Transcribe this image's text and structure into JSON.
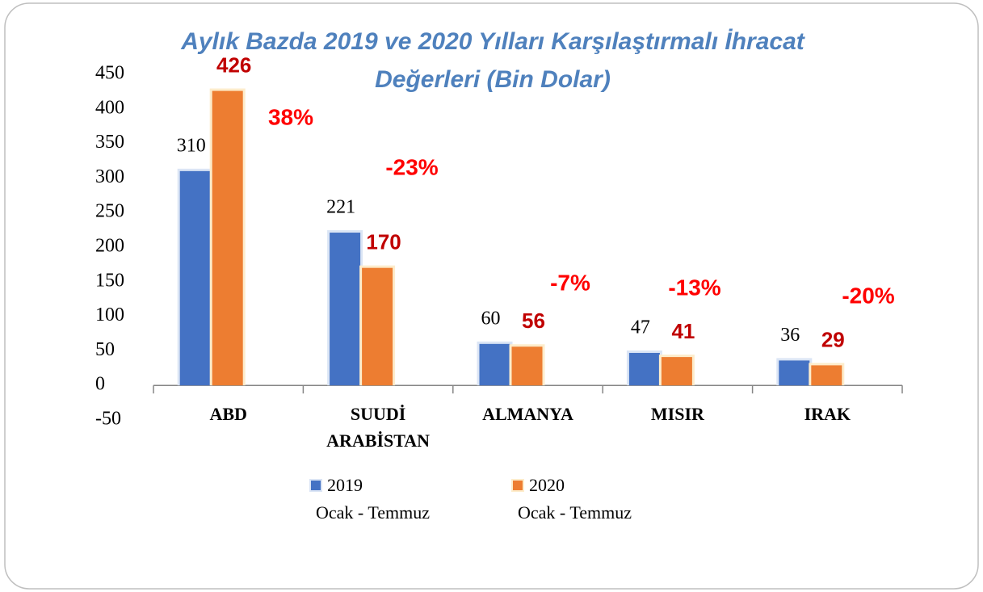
{
  "chart_data": {
    "type": "bar",
    "title": [
      "Aylık Bazda 2019 ve 2020 Yılları Karşılaştırmalı İhracat",
      "Değerleri (Bin Dolar)"
    ],
    "categories": [
      "ABD",
      "SUUDİ ARABİSTAN",
      "ALMANYA",
      "MISIR",
      "IRAK"
    ],
    "series": [
      {
        "name": "2019 Ocak - Temmuz",
        "color": "#4472c4",
        "values": [
          310,
          221,
          60,
          47,
          36
        ]
      },
      {
        "name": "2020 Ocak - Temmuz",
        "color": "#ed7d31",
        "values": [
          426,
          170,
          56,
          41,
          29
        ]
      }
    ],
    "annotations": [
      "38%",
      "-23%",
      "-7%",
      "-13%",
      "-20%"
    ],
    "ylim": [
      -50,
      450
    ],
    "yticks": [
      -50,
      0,
      50,
      100,
      150,
      200,
      250,
      300,
      350,
      400,
      450
    ],
    "legend": "bottom"
  }
}
